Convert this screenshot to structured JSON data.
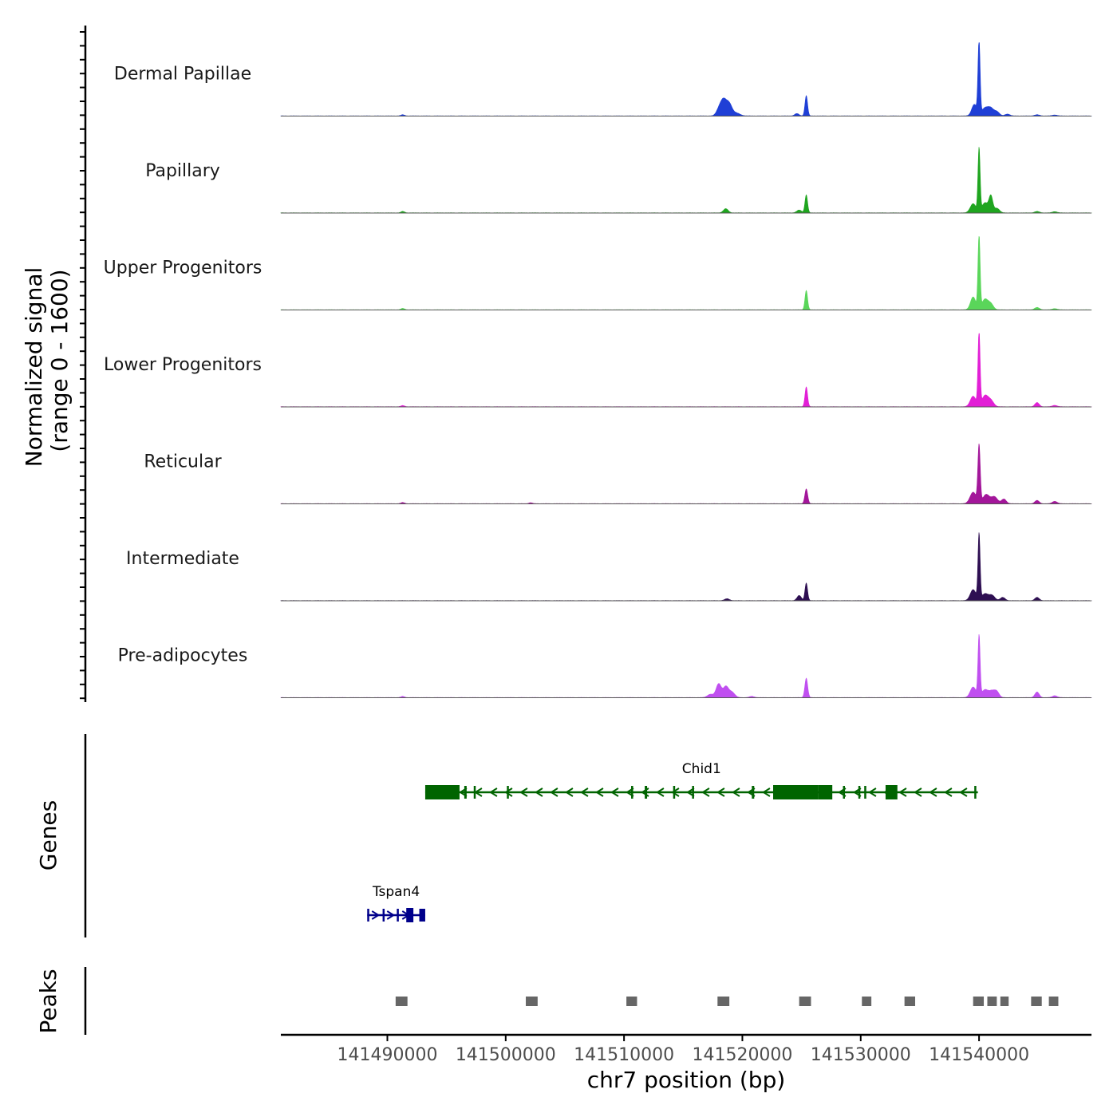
{
  "chart_data": {
    "type": "area",
    "title": "",
    "chromosome": "chr7",
    "xlabel": "chr7 position (bp)",
    "ylabel_line1": "Normalized signal",
    "ylabel_line2": "(range 0 - 1600)",
    "xlim": [
      141481000,
      141549500
    ],
    "ylim": [
      0,
      1600
    ],
    "x_ticks": [
      141490000,
      141500000,
      141510000,
      141520000,
      141530000,
      141540000
    ],
    "x_tick_labels": [
      "141490000",
      "141500000",
      "141510000",
      "141520000",
      "141530000",
      "141540000"
    ],
    "tracks": [
      {
        "name": "Dermal Papillae",
        "color": "#1f3fd6",
        "peaks": [
          {
            "x": 141491300,
            "y": 25,
            "w": 150
          },
          {
            "x": 141518400,
            "y": 340,
            "w": 260
          },
          {
            "x": 141518900,
            "y": 240,
            "w": 240
          },
          {
            "x": 141518000,
            "y": 110,
            "w": 220
          },
          {
            "x": 141519500,
            "y": 60,
            "w": 300
          },
          {
            "x": 141524600,
            "y": 50,
            "w": 180
          },
          {
            "x": 141525400,
            "y": 440,
            "w": 110
          },
          {
            "x": 141539600,
            "y": 250,
            "w": 220
          },
          {
            "x": 141540000,
            "y": 1600,
            "w": 90
          },
          {
            "x": 141540500,
            "y": 170,
            "w": 280
          },
          {
            "x": 141541000,
            "y": 150,
            "w": 240
          },
          {
            "x": 141541500,
            "y": 90,
            "w": 220
          },
          {
            "x": 141542400,
            "y": 40,
            "w": 200
          },
          {
            "x": 141544900,
            "y": 25,
            "w": 200
          },
          {
            "x": 141546400,
            "y": 20,
            "w": 200
          }
        ]
      },
      {
        "name": "Papillary",
        "color": "#1fa51f",
        "peaks": [
          {
            "x": 141491300,
            "y": 30,
            "w": 150
          },
          {
            "x": 141518600,
            "y": 90,
            "w": 200
          },
          {
            "x": 141524800,
            "y": 60,
            "w": 200
          },
          {
            "x": 141525400,
            "y": 390,
            "w": 110
          },
          {
            "x": 141539500,
            "y": 200,
            "w": 240
          },
          {
            "x": 141540000,
            "y": 1380,
            "w": 90
          },
          {
            "x": 141540500,
            "y": 220,
            "w": 260
          },
          {
            "x": 141541000,
            "y": 350,
            "w": 160
          },
          {
            "x": 141541500,
            "y": 100,
            "w": 220
          },
          {
            "x": 141544900,
            "y": 30,
            "w": 200
          },
          {
            "x": 141546400,
            "y": 25,
            "w": 200
          }
        ]
      },
      {
        "name": "Upper Progenitors",
        "color": "#5ad65a",
        "peaks": [
          {
            "x": 141491300,
            "y": 30,
            "w": 150
          },
          {
            "x": 141525400,
            "y": 420,
            "w": 110
          },
          {
            "x": 141539500,
            "y": 280,
            "w": 220
          },
          {
            "x": 141540000,
            "y": 1600,
            "w": 90
          },
          {
            "x": 141540500,
            "y": 230,
            "w": 260
          },
          {
            "x": 141541000,
            "y": 120,
            "w": 220
          },
          {
            "x": 141544900,
            "y": 50,
            "w": 200
          },
          {
            "x": 141546400,
            "y": 25,
            "w": 200
          }
        ]
      },
      {
        "name": "Lower Progenitors",
        "color": "#e21fd6",
        "peaks": [
          {
            "x": 141491300,
            "y": 25,
            "w": 150
          },
          {
            "x": 141525400,
            "y": 430,
            "w": 110
          },
          {
            "x": 141539500,
            "y": 230,
            "w": 240
          },
          {
            "x": 141540000,
            "y": 1600,
            "w": 90
          },
          {
            "x": 141540500,
            "y": 240,
            "w": 260
          },
          {
            "x": 141541000,
            "y": 130,
            "w": 240
          },
          {
            "x": 141544900,
            "y": 90,
            "w": 180
          },
          {
            "x": 141546400,
            "y": 30,
            "w": 200
          }
        ]
      },
      {
        "name": "Reticular",
        "color": "#a3169a",
        "peaks": [
          {
            "x": 141491300,
            "y": 25,
            "w": 150
          },
          {
            "x": 141502100,
            "y": 20,
            "w": 150
          },
          {
            "x": 141525400,
            "y": 320,
            "w": 120
          },
          {
            "x": 141539500,
            "y": 250,
            "w": 260
          },
          {
            "x": 141540000,
            "y": 1250,
            "w": 100
          },
          {
            "x": 141540600,
            "y": 200,
            "w": 280
          },
          {
            "x": 141541300,
            "y": 150,
            "w": 260
          },
          {
            "x": 141542100,
            "y": 100,
            "w": 200
          },
          {
            "x": 141544900,
            "y": 70,
            "w": 180
          },
          {
            "x": 141546400,
            "y": 50,
            "w": 200
          }
        ]
      },
      {
        "name": "Intermediate",
        "color": "#2e0f52",
        "peaks": [
          {
            "x": 141518700,
            "y": 40,
            "w": 200
          },
          {
            "x": 141524800,
            "y": 110,
            "w": 180
          },
          {
            "x": 141525400,
            "y": 380,
            "w": 110
          },
          {
            "x": 141539500,
            "y": 240,
            "w": 240
          },
          {
            "x": 141540000,
            "y": 1430,
            "w": 90
          },
          {
            "x": 141540500,
            "y": 150,
            "w": 280
          },
          {
            "x": 141541100,
            "y": 110,
            "w": 240
          },
          {
            "x": 141542000,
            "y": 70,
            "w": 200
          },
          {
            "x": 141544900,
            "y": 70,
            "w": 180
          }
        ]
      },
      {
        "name": "Pre-adipocytes",
        "color": "#c04ff0",
        "peaks": [
          {
            "x": 141491300,
            "y": 25,
            "w": 150
          },
          {
            "x": 141517300,
            "y": 70,
            "w": 250
          },
          {
            "x": 141518000,
            "y": 300,
            "w": 220
          },
          {
            "x": 141518600,
            "y": 230,
            "w": 220
          },
          {
            "x": 141519100,
            "y": 120,
            "w": 250
          },
          {
            "x": 141520800,
            "y": 25,
            "w": 200
          },
          {
            "x": 141525400,
            "y": 420,
            "w": 120
          },
          {
            "x": 141539500,
            "y": 230,
            "w": 240
          },
          {
            "x": 141540000,
            "y": 1320,
            "w": 90
          },
          {
            "x": 141540500,
            "y": 170,
            "w": 280
          },
          {
            "x": 141541100,
            "y": 130,
            "w": 240
          },
          {
            "x": 141541500,
            "y": 120,
            "w": 200
          },
          {
            "x": 141544900,
            "y": 120,
            "w": 180
          },
          {
            "x": 141546400,
            "y": 40,
            "w": 200
          }
        ]
      }
    ],
    "genes_title": "Genes",
    "genes": [
      {
        "name": "Chid1",
        "strand": "-",
        "color": "#006400",
        "start": 141493200,
        "end": 141539900,
        "exons": [
          [
            141493200,
            141496100
          ],
          [
            141496500,
            141496700
          ],
          [
            141497300,
            141497450
          ],
          [
            141500100,
            141500250
          ],
          [
            141510600,
            141510700
          ],
          [
            141511750,
            141511950
          ],
          [
            141514150,
            141514300
          ],
          [
            141515750,
            141515900
          ],
          [
            141520800,
            141521000
          ],
          [
            141522600,
            141526400
          ],
          [
            141526400,
            141527600
          ],
          [
            141528500,
            141528650
          ],
          [
            141529800,
            141529950
          ],
          [
            141530300,
            141530450
          ],
          [
            141532100,
            141533100
          ],
          [
            141539600,
            141539750
          ]
        ]
      },
      {
        "name": "Tspan4",
        "strand": "+",
        "color": "#00008b",
        "start": 141488300,
        "end": 141493200,
        "exons": [
          [
            141488300,
            141488450
          ],
          [
            141489600,
            141489750
          ],
          [
            141490800,
            141490950
          ],
          [
            141491600,
            141492200
          ],
          [
            141492700,
            141493200
          ]
        ]
      }
    ],
    "peaks_title": "Peaks",
    "peak_regions": [
      [
        141490700,
        141491700
      ],
      [
        141501700,
        141502700
      ],
      [
        141510200,
        141511100
      ],
      [
        141517900,
        141518900
      ],
      [
        141524800,
        141525800
      ],
      [
        141530100,
        141530900
      ],
      [
        141533700,
        141534600
      ],
      [
        141539500,
        141540400
      ],
      [
        141540700,
        141541500
      ],
      [
        141541800,
        141542500
      ],
      [
        141544400,
        141545300
      ],
      [
        141545900,
        141546700
      ]
    ]
  }
}
